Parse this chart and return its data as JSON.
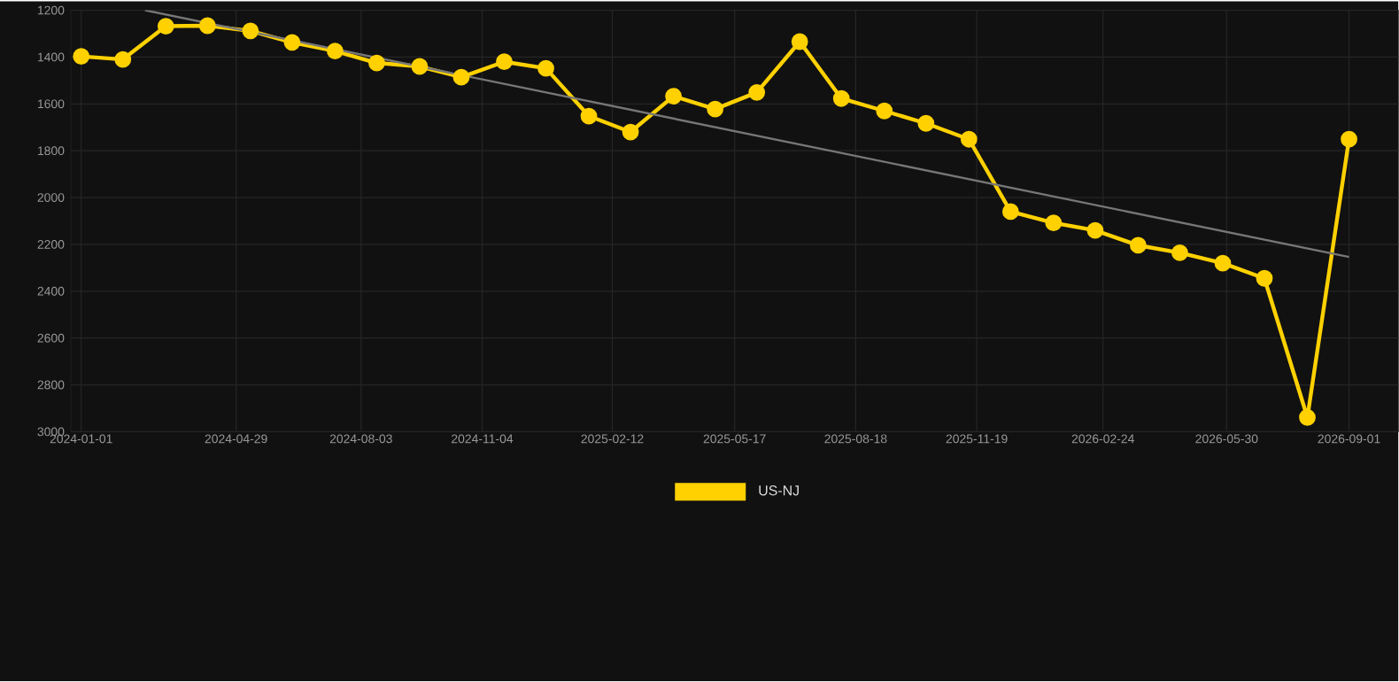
{
  "chart_data": {
    "type": "line",
    "x": [
      "2024-01-01",
      "2024-02-02",
      "2024-03-06",
      "2024-04-07",
      "2024-05-10",
      "2024-06-11",
      "2024-07-14",
      "2024-08-15",
      "2024-09-17",
      "2024-10-19",
      "2024-11-21",
      "2024-12-23",
      "2025-01-25",
      "2025-02-26",
      "2025-03-31",
      "2025-05-02",
      "2025-06-03",
      "2025-07-06",
      "2025-08-07",
      "2025-09-09",
      "2025-10-11",
      "2025-11-13",
      "2025-12-15",
      "2026-01-17",
      "2026-02-18",
      "2026-03-23",
      "2026-04-24",
      "2026-05-27",
      "2026-06-28",
      "2026-07-31",
      "2026-09-01"
    ],
    "series": [
      {
        "name": "US-NJ",
        "color": "#ffd100",
        "values": [
          1397,
          1410,
          1268,
          1266,
          1288,
          1337,
          1374,
          1425,
          1440,
          1486,
          1420,
          1448,
          1652,
          1720,
          1567,
          1622,
          1551,
          1334,
          1577,
          1630,
          1683,
          1751,
          2060,
          2108,
          2140,
          2204,
          2236,
          2280,
          2345,
          2939,
          1751
        ]
      },
      {
        "type": "line",
        "color": "#777777",
        "marker": "none",
        "x": [
          "2024-02-19",
          "2026-09-01"
        ],
        "values": [
          1200,
          2254
        ]
      }
    ],
    "xlim": [
      "2023-12-24",
      "2026-10-09"
    ],
    "ylim": [
      3000,
      1200
    ],
    "xticks": [
      "2024-01-01",
      "2024-04-29",
      "2024-08-03",
      "2024-11-04",
      "2025-02-12",
      "2025-05-17",
      "2025-08-18",
      "2025-11-19",
      "2026-02-24",
      "2026-05-30",
      "2026-09-01"
    ],
    "yticks": [
      1200,
      1400,
      1600,
      1800,
      2000,
      2200,
      2400,
      2600,
      2800,
      3000
    ],
    "grid": true,
    "legend": "bottom",
    "marker": "circle"
  }
}
